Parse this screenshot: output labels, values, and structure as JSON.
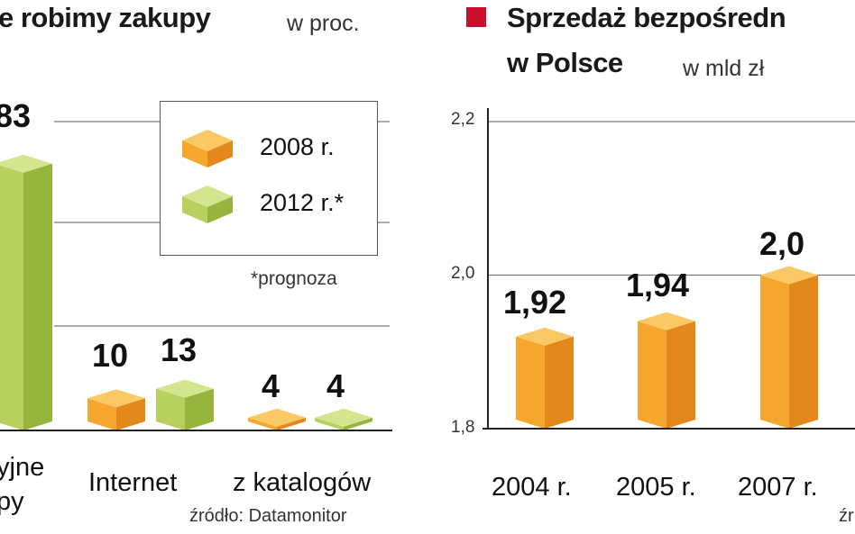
{
  "colors": {
    "orange_front": "#f5a62c",
    "orange_side": "#e3891b",
    "orange_top": "#fbc866",
    "green_front": "#b8d05e",
    "green_side": "#97b43d",
    "green_top": "#d4e58f",
    "title_marker": "#c8102e",
    "grid": "#7a7a7a",
    "axis": "#222222"
  },
  "chart_data": [
    {
      "type": "bar",
      "title": "e robimy zakupy",
      "unit": "w proc.",
      "categories": [
        "yjne\npy",
        "Internet",
        "z katalogów"
      ],
      "series": [
        {
          "name": "2008 r.",
          "values": [
            null,
            10,
            4
          ]
        },
        {
          "name": "2012 r.*",
          "values": [
            83,
            13,
            4
          ]
        }
      ],
      "value_labels": [
        [
          "",
          "83"
        ],
        [
          "10",
          "13"
        ],
        [
          "4",
          "4"
        ]
      ],
      "legend": {
        "placement": "top-right",
        "entries": [
          "2008 r.",
          "2012 r.*"
        ]
      },
      "note": "*prognoza",
      "source": "źródło: Datamonitor",
      "grid": true
    },
    {
      "type": "bar",
      "title_line1": "Sprzedaż bezpośredn",
      "title_line2": "w Polsce",
      "unit": "w mld zł",
      "categories": [
        "2004 r.",
        "2005 r.",
        "2007 r."
      ],
      "values": [
        1.92,
        1.94,
        2.0
      ],
      "value_labels": [
        "1,92",
        "1,94",
        "2,0"
      ],
      "ylim": [
        1.8,
        2.2
      ],
      "yticks": [
        "1,8",
        "2,0",
        "2,2"
      ],
      "source": "źr",
      "grid": true
    }
  ]
}
